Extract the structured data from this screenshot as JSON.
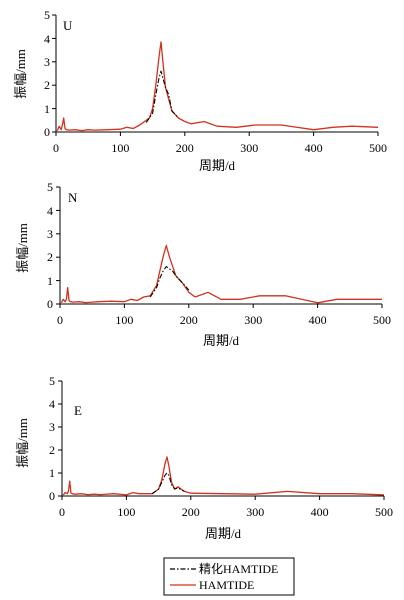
{
  "legend": {
    "placement": "bottom-center",
    "entries": [
      {
        "label": "精化HAMTIDE",
        "color": "#000000",
        "style": "dash-dot"
      },
      {
        "label": "HAMTIDE",
        "color": "#d2321e",
        "style": "solid"
      }
    ]
  },
  "chart_data": [
    {
      "type": "line",
      "panel_label": "U",
      "xlabel": "周期/d",
      "ylabel": "振幅/mm",
      "xlim": [
        0,
        500
      ],
      "ylim": [
        0,
        5
      ],
      "xticks": [
        0,
        100,
        200,
        300,
        400,
        500
      ],
      "yticks": [
        0,
        1,
        2,
        3,
        4,
        5
      ],
      "grid": false,
      "series": [
        {
          "name": "HAMTIDE",
          "color": "#d2321e",
          "style": "solid",
          "x": [
            2,
            5,
            8,
            10,
            12,
            14,
            16,
            20,
            30,
            40,
            50,
            60,
            80,
            100,
            110,
            120,
            130,
            140,
            145,
            150,
            155,
            160,
            163,
            166,
            170,
            175,
            180,
            190,
            200,
            210,
            230,
            250,
            280,
            310,
            350,
            400,
            430,
            460,
            500
          ],
          "y": [
            0.05,
            0.25,
            0.1,
            0.3,
            0.6,
            0.15,
            0.1,
            0.08,
            0.1,
            0.06,
            0.1,
            0.08,
            0.1,
            0.12,
            0.2,
            0.15,
            0.3,
            0.5,
            0.6,
            1.0,
            2.0,
            3.2,
            3.85,
            3.0,
            1.9,
            1.4,
            0.9,
            0.6,
            0.45,
            0.35,
            0.45,
            0.25,
            0.2,
            0.3,
            0.3,
            0.1,
            0.2,
            0.25,
            0.2
          ]
        },
        {
          "name": "精化HAMTIDE",
          "color": "#000000",
          "style": "dash-dot",
          "x": [
            140,
            150,
            155,
            160,
            163,
            166,
            170,
            175,
            180,
            190
          ],
          "y": [
            0.4,
            0.8,
            1.6,
            2.3,
            2.6,
            2.3,
            1.9,
            1.6,
            0.9,
            0.6
          ]
        }
      ]
    },
    {
      "type": "line",
      "panel_label": "N",
      "xlabel": "周期/d",
      "ylabel": "振幅/mm",
      "xlim": [
        0,
        500
      ],
      "ylim": [
        0,
        5
      ],
      "xticks": [
        0,
        100,
        200,
        300,
        400,
        500
      ],
      "yticks": [
        0,
        1,
        2,
        3,
        4,
        5
      ],
      "grid": false,
      "series": [
        {
          "name": "HAMTIDE",
          "color": "#d2321e",
          "style": "solid",
          "x": [
            2,
            5,
            8,
            10,
            12,
            14,
            16,
            20,
            30,
            40,
            50,
            60,
            80,
            100,
            110,
            120,
            130,
            140,
            150,
            155,
            160,
            165,
            170,
            180,
            190,
            200,
            210,
            230,
            250,
            280,
            310,
            350,
            400,
            430,
            460,
            500
          ],
          "y": [
            0.05,
            0.2,
            0.1,
            0.2,
            0.7,
            0.15,
            0.1,
            0.08,
            0.1,
            0.06,
            0.08,
            0.1,
            0.12,
            0.1,
            0.2,
            0.15,
            0.3,
            0.35,
            0.8,
            1.4,
            2.0,
            2.5,
            2.0,
            1.2,
            0.9,
            0.5,
            0.3,
            0.5,
            0.2,
            0.2,
            0.35,
            0.35,
            0.05,
            0.2,
            0.2,
            0.2
          ]
        },
        {
          "name": "精化HAMTIDE",
          "color": "#000000",
          "style": "dash-dot",
          "x": [
            140,
            150,
            155,
            160,
            165,
            170,
            175,
            180,
            190,
            200
          ],
          "y": [
            0.3,
            0.7,
            1.1,
            1.4,
            1.6,
            1.5,
            1.4,
            1.2,
            0.9,
            0.6
          ]
        }
      ]
    },
    {
      "type": "line",
      "panel_label": "E",
      "xlabel": "周期/d",
      "ylabel": "振幅/mm",
      "xlim": [
        0,
        500
      ],
      "ylim": [
        0,
        5
      ],
      "xticks": [
        0,
        100,
        200,
        300,
        400,
        500
      ],
      "yticks": [
        0,
        1,
        2,
        3,
        4,
        5
      ],
      "grid": false,
      "series": [
        {
          "name": "HAMTIDE",
          "color": "#d2321e",
          "style": "solid",
          "x": [
            2,
            5,
            8,
            10,
            12,
            14,
            16,
            20,
            30,
            40,
            50,
            60,
            80,
            100,
            110,
            120,
            130,
            140,
            150,
            155,
            160,
            163,
            166,
            170,
            175,
            180,
            190,
            200,
            250,
            300,
            350,
            400,
            450,
            500
          ],
          "y": [
            0.05,
            0.15,
            0.1,
            0.2,
            0.65,
            0.12,
            0.1,
            0.08,
            0.1,
            0.06,
            0.08,
            0.06,
            0.1,
            0.05,
            0.15,
            0.1,
            0.1,
            0.1,
            0.3,
            0.7,
            1.4,
            1.7,
            1.3,
            0.6,
            0.3,
            0.4,
            0.2,
            0.12,
            0.1,
            0.08,
            0.2,
            0.1,
            0.1,
            0.05
          ]
        },
        {
          "name": "精化HAMTIDE",
          "color": "#000000",
          "style": "dash-dot",
          "x": [
            140,
            150,
            155,
            160,
            163,
            166,
            170,
            175,
            180,
            190
          ],
          "y": [
            0.1,
            0.3,
            0.6,
            0.9,
            1.0,
            0.9,
            0.5,
            0.3,
            0.35,
            0.2
          ]
        }
      ]
    }
  ]
}
